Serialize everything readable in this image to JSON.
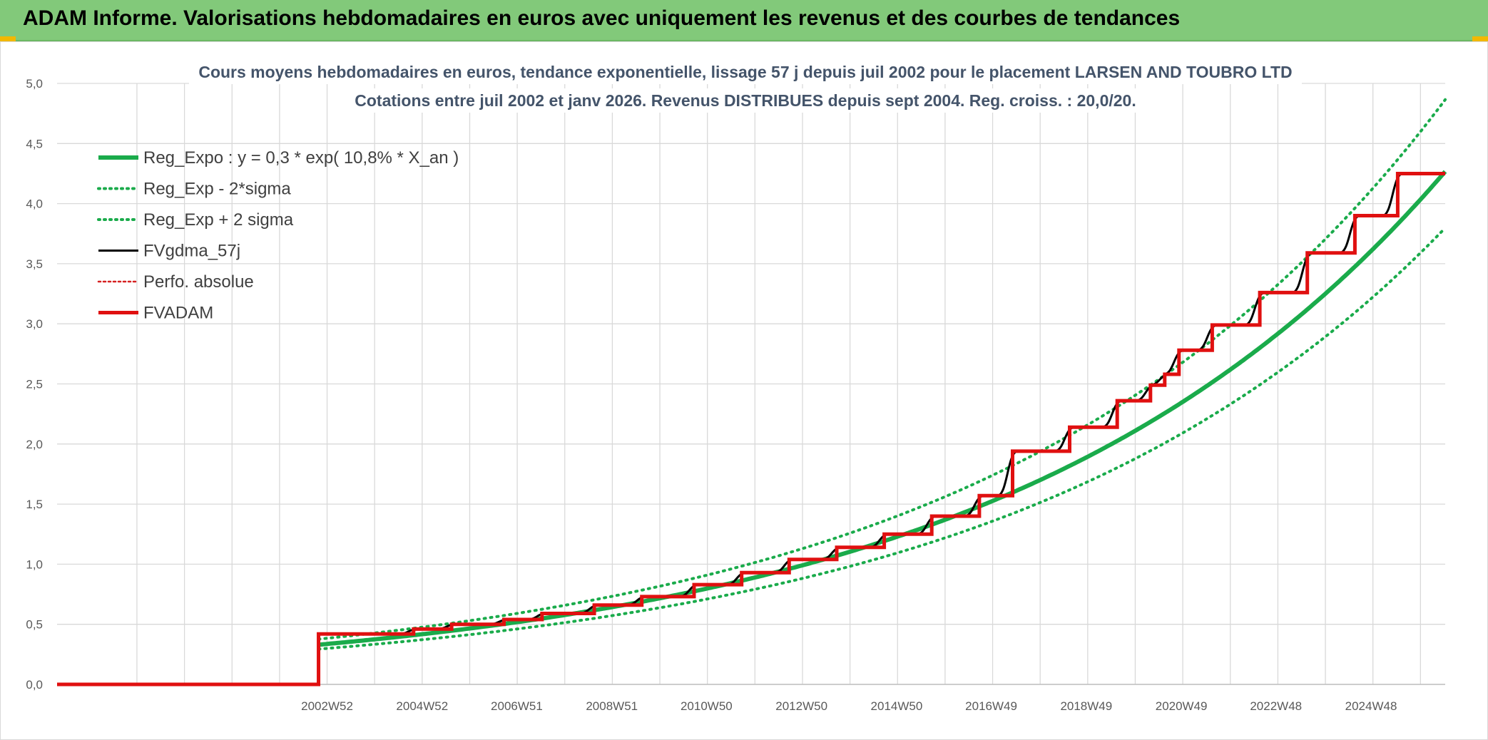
{
  "header": {
    "title": "ADAM Informe. Valorisations hebdomadaires en euros avec uniquement les revenus et des courbes de tendances"
  },
  "chart_data": {
    "type": "line",
    "title_lines": [
      "Cours moyens hebdomadaires en euros, tendance exponentielle, lissage 57 j depuis juil 2002 pour le placement LARSEN AND TOUBRO LTD",
      "Cotations entre juil 2002  et janv 2026. Revenus DISTRIBUES depuis sept 2004. Reg. croiss. : 20,0/20."
    ],
    "xlabel": "",
    "ylabel": "",
    "x_start": 1997.3,
    "x_end": 2026.5,
    "x_ticks": [
      {
        "label": "2002W52",
        "x": 2002.98
      },
      {
        "label": "2004W52",
        "x": 2004.98
      },
      {
        "label": "2006W51",
        "x": 2006.97
      },
      {
        "label": "2008W51",
        "x": 2008.97
      },
      {
        "label": "2010W50",
        "x": 2010.96
      },
      {
        "label": "2012W50",
        "x": 2012.96
      },
      {
        "label": "2014W50",
        "x": 2014.96
      },
      {
        "label": "2016W49",
        "x": 2016.95
      },
      {
        "label": "2018W49",
        "x": 2018.95
      },
      {
        "label": "2020W49",
        "x": 2020.95
      },
      {
        "label": "2022W48",
        "x": 2022.94
      },
      {
        "label": "2024W48",
        "x": 2024.94
      }
    ],
    "ylim": [
      0,
      5
    ],
    "y_ticks": [
      "0,0",
      "0,5",
      "1,0",
      "1,5",
      "2,0",
      "2,5",
      "3,0",
      "3,5",
      "4,0",
      "4,5",
      "5,0"
    ],
    "grid": true,
    "legend_position": "top-left",
    "start_year": 2002.8,
    "regression": {
      "a": 0.33,
      "growth": 0.108,
      "sigma_factor_high": 1.14,
      "sigma_factor_low": 0.89
    },
    "series": [
      {
        "name": "Reg_Expo : y = 0,3 * exp( 10,8% *  X_an )",
        "color": "#1aab4b",
        "style": "solid",
        "width": 6
      },
      {
        "name": "Reg_Exp - 2*sigma",
        "color": "#1aab4b",
        "style": "dotted",
        "width": 4
      },
      {
        "name": "Reg_Exp + 2 sigma",
        "color": "#1aab4b",
        "style": "dotted",
        "width": 4
      },
      {
        "name": "FVgdma_57j",
        "color": "#000000",
        "style": "solid",
        "width": 3
      },
      {
        "name": "Perfo. absolue",
        "color": "#d62020",
        "style": "dotted",
        "width": 2.5
      },
      {
        "name": "FVADAM",
        "color": "#e01010",
        "style": "solid",
        "width": 5
      }
    ],
    "fvadam_steps": [
      {
        "x": 2002.8,
        "y": 0.42
      },
      {
        "x": 2004.8,
        "y": 0.46
      },
      {
        "x": 2005.6,
        "y": 0.5
      },
      {
        "x": 2006.7,
        "y": 0.54
      },
      {
        "x": 2007.5,
        "y": 0.59
      },
      {
        "x": 2008.6,
        "y": 0.66
      },
      {
        "x": 2009.6,
        "y": 0.73
      },
      {
        "x": 2010.7,
        "y": 0.83
      },
      {
        "x": 2011.7,
        "y": 0.93
      },
      {
        "x": 2012.7,
        "y": 1.04
      },
      {
        "x": 2013.7,
        "y": 1.14
      },
      {
        "x": 2014.7,
        "y": 1.25
      },
      {
        "x": 2015.7,
        "y": 1.4
      },
      {
        "x": 2016.7,
        "y": 1.57
      },
      {
        "x": 2017.4,
        "y": 1.94
      },
      {
        "x": 2018.6,
        "y": 2.14
      },
      {
        "x": 2019.6,
        "y": 2.36
      },
      {
        "x": 2020.3,
        "y": 2.49
      },
      {
        "x": 2020.6,
        "y": 2.58
      },
      {
        "x": 2020.9,
        "y": 2.78
      },
      {
        "x": 2021.6,
        "y": 2.99
      },
      {
        "x": 2022.6,
        "y": 3.26
      },
      {
        "x": 2023.6,
        "y": 3.59
      },
      {
        "x": 2024.6,
        "y": 3.9
      },
      {
        "x": 2025.5,
        "y": 4.25
      }
    ],
    "fvadam_end_x": 2026.5
  }
}
